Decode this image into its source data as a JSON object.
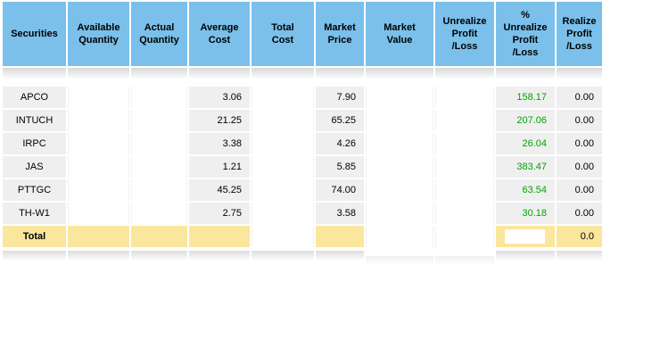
{
  "app": {
    "name": "securities-portfolio-grid"
  },
  "colors": {
    "header_blue": "#7AC0EA",
    "row_gray": "#EFEFEF",
    "total_yellow": "#FBE69D",
    "profit_green": "#00A400",
    "text_black": "#000000"
  },
  "table": {
    "columns": [
      {
        "id": "securities",
        "label": "Securities"
      },
      {
        "id": "available_quantity",
        "label": "Available\nQuantity"
      },
      {
        "id": "actual_quantity",
        "label": "Actual\nQuantity"
      },
      {
        "id": "average_cost",
        "label": "Average\nCost"
      },
      {
        "id": "total_cost",
        "label": "Total\nCost"
      },
      {
        "id": "market_price",
        "label": "Market\nPrice"
      },
      {
        "id": "market_value",
        "label": "Market\nValue"
      },
      {
        "id": "unrealize_profit_loss",
        "label": "Unrealize\nProfit\n/Loss"
      },
      {
        "id": "pct_unrealize_profit_loss",
        "label": "%\nUnrealize\nProfit\n/Loss"
      },
      {
        "id": "realize_profit_loss",
        "label": "Realize\nProfit\n/Loss"
      }
    ],
    "rows": [
      {
        "securities": "APCO",
        "available_quantity": "",
        "actual_quantity": "",
        "average_cost": "3.06",
        "total_cost": "",
        "market_price": "7.90",
        "market_value": "",
        "unrealize_profit_loss": "",
        "pct_unrealize_profit_loss": "158.17",
        "realize_profit_loss": "0.00"
      },
      {
        "securities": "INTUCH",
        "available_quantity": "",
        "actual_quantity": "",
        "average_cost": "21.25",
        "total_cost": "",
        "market_price": "65.25",
        "market_value": "",
        "unrealize_profit_loss": "",
        "pct_unrealize_profit_loss": "207.06",
        "realize_profit_loss": "0.00"
      },
      {
        "securities": "IRPC",
        "available_quantity": "",
        "actual_quantity": "",
        "average_cost": "3.38",
        "total_cost": "",
        "market_price": "4.26",
        "market_value": "",
        "unrealize_profit_loss": "",
        "pct_unrealize_profit_loss": "26.04",
        "realize_profit_loss": "0.00"
      },
      {
        "securities": "JAS",
        "available_quantity": "",
        "actual_quantity": "",
        "average_cost": "1.21",
        "total_cost": "",
        "market_price": "5.85",
        "market_value": "",
        "unrealize_profit_loss": "",
        "pct_unrealize_profit_loss": "383.47",
        "realize_profit_loss": "0.00"
      },
      {
        "securities": "PTTGC",
        "available_quantity": "",
        "actual_quantity": "",
        "average_cost": "45.25",
        "total_cost": "",
        "market_price": "74.00",
        "market_value": "",
        "unrealize_profit_loss": "",
        "pct_unrealize_profit_loss": "63.54",
        "realize_profit_loss": "0.00"
      },
      {
        "securities": "TH-W1",
        "available_quantity": "",
        "actual_quantity": "",
        "average_cost": "2.75",
        "total_cost": "",
        "market_price": "3.58",
        "market_value": "",
        "unrealize_profit_loss": "",
        "pct_unrealize_profit_loss": "30.18",
        "realize_profit_loss": "0.00"
      }
    ],
    "total_row": {
      "label": "Total",
      "realize_profit_loss": "0.0"
    }
  }
}
